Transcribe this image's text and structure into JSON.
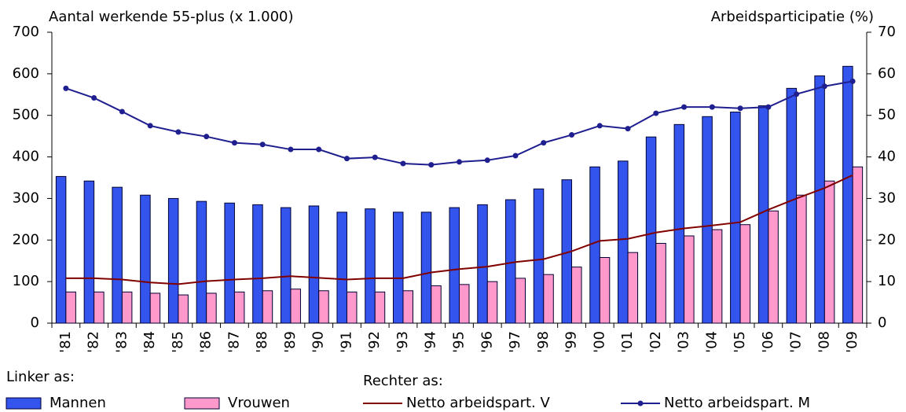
{
  "chart_data": {
    "type": "bar_line",
    "y_label": "Aantal werkende 55-plus (x 1.000)",
    "y2_label": "Arbeidsparticipatie (%)",
    "categories": [
      "'81",
      "'82",
      "'83",
      "'84",
      "'85",
      "'86",
      "'87",
      "'88",
      "'89",
      "'90",
      "'91",
      "'92",
      "'93",
      "'94",
      "'95",
      "'96",
      "'97",
      "'98",
      "'99",
      "'00",
      "'01",
      "'02",
      "'03",
      "'04",
      "'05",
      "'06",
      "'07",
      "'08",
      "'09"
    ],
    "series": [
      {
        "name": "Mannen",
        "type": "bar",
        "color": "#3355ee",
        "values": [
          353,
          342,
          327,
          308,
          300,
          293,
          289,
          285,
          278,
          282,
          267,
          275,
          267,
          267,
          278,
          285,
          297,
          323,
          345,
          376,
          390,
          448,
          478,
          497,
          508,
          523,
          565,
          595,
          618
        ]
      },
      {
        "name": "Vrouwen",
        "type": "bar",
        "color": "#ff99cc",
        "values": [
          75,
          75,
          75,
          72,
          68,
          72,
          75,
          78,
          82,
          78,
          75,
          75,
          78,
          90,
          93,
          100,
          108,
          117,
          135,
          158,
          170,
          192,
          210,
          225,
          237,
          270,
          308,
          342,
          376
        ]
      },
      {
        "name": "Netto arbeidspart. V",
        "type": "line",
        "axis": "y2",
        "color": "#800000",
        "values": [
          10.8,
          10.8,
          10.5,
          9.8,
          9.4,
          10.1,
          10.5,
          10.8,
          11.3,
          10.9,
          10.5,
          10.8,
          10.8,
          12.2,
          13,
          13.6,
          14.7,
          15.4,
          17.3,
          19.8,
          20.3,
          21.8,
          22.8,
          23.5,
          24.3,
          27.3,
          30,
          32.5,
          35.6
        ]
      },
      {
        "name": "Netto arbeidspart. M",
        "type": "line",
        "axis": "y2",
        "color": "#1f1f8f",
        "markers": true,
        "values": [
          56.5,
          54.2,
          50.9,
          47.5,
          46,
          44.9,
          43.4,
          43,
          41.8,
          41.8,
          39.6,
          39.9,
          38.4,
          38.1,
          38.8,
          39.2,
          40.3,
          43.4,
          45.3,
          47.5,
          46.8,
          50.5,
          52,
          52,
          51.7,
          52,
          55.1,
          57,
          58.2
        ]
      }
    ],
    "legend_headers": [
      "Linker as:",
      "Rechter as:"
    ],
    "ylim": [
      0,
      700
    ],
    "yticks": [
      0,
      100,
      200,
      300,
      400,
      500,
      600,
      700
    ],
    "y2lim": [
      0,
      70
    ],
    "y2ticks": [
      0,
      10,
      20,
      30,
      40,
      50,
      60,
      70
    ]
  }
}
